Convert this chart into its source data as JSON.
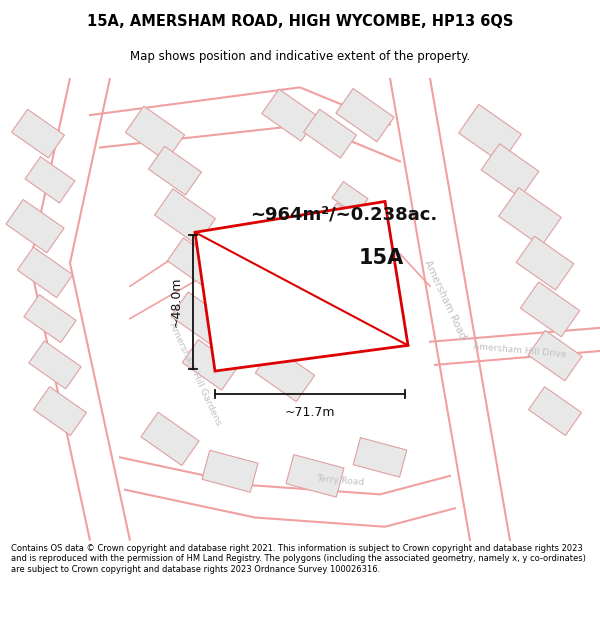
{
  "title_line1": "15A, AMERSHAM ROAD, HIGH WYCOMBE, HP13 6QS",
  "title_line2": "Map shows position and indicative extent of the property.",
  "area_label": "~964m²/~0.238ac.",
  "plot_label": "15A",
  "dim_width": "~71.7m",
  "dim_height": "~48.0m",
  "footer_text": "Contains OS data © Crown copyright and database right 2021. This information is subject to Crown copyright and database rights 2023 and is reproduced with the permission of HM Land Registry. The polygons (including the associated geometry, namely x, y co-ordinates) are subject to Crown copyright and database rights 2023 Ordnance Survey 100026316.",
  "bg_color": "#ffffff",
  "map_bg": "#f9f9f9",
  "plot_fill": "#ffffff",
  "plot_edge": "#dd0000",
  "road_outline_color": "#f0a0a0",
  "road_center_color": "#f0a0a0",
  "building_fill": "#e8e8e8",
  "building_edge": "#e0a0a0",
  "road_label_color": "#c0c0c0",
  "dim_color": "#111111",
  "area_label_color": "#111111",
  "plot_label_color": "#111111"
}
